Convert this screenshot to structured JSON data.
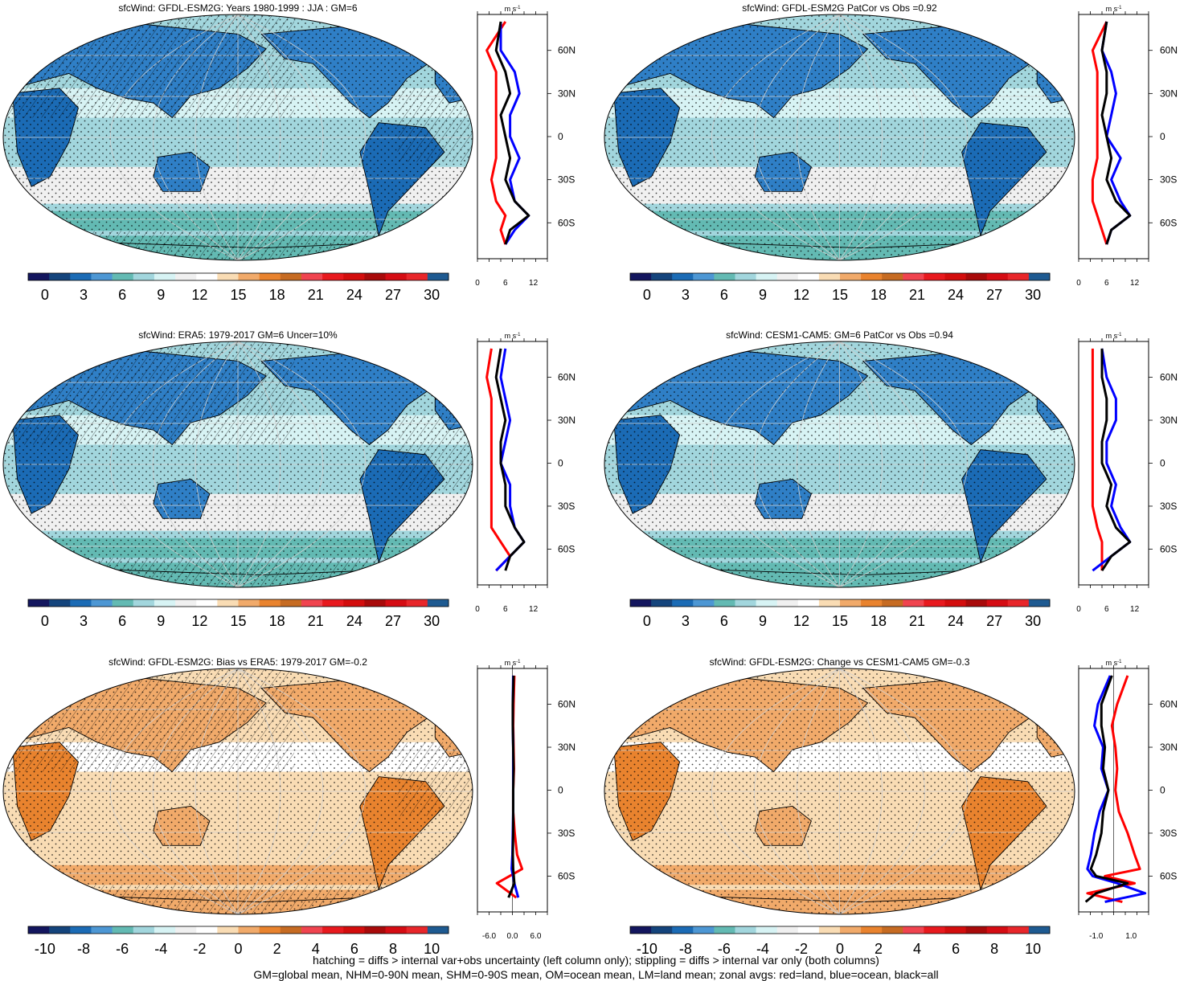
{
  "variable": "sfcWind",
  "panels": [
    {
      "id": "p1",
      "title": "sfcWind: GFDL-ESM2G: Years 1980-1999 : JJA : GM=6",
      "kind": "climatology",
      "hatching": "mixed",
      "colorbar_labels": [
        "0",
        "3",
        "6",
        "9",
        "12",
        "15",
        "18",
        "21",
        "24",
        "27",
        "30"
      ],
      "profile_ticks": [
        "0",
        "6",
        "12"
      ],
      "profile_range": [
        0,
        15
      ]
    },
    {
      "id": "p2",
      "title": "sfcWind: GFDL-ESM2G PatCor vs Obs =0.92",
      "kind": "climatology",
      "hatching": "stipple",
      "colorbar_labels": [
        "0",
        "3",
        "6",
        "9",
        "12",
        "15",
        "18",
        "21",
        "24",
        "27",
        "30"
      ],
      "profile_ticks": [
        "0",
        "6",
        "12"
      ],
      "profile_range": [
        0,
        15
      ]
    },
    {
      "id": "p3",
      "title": "sfcWind: ERA5: 1979-2017 GM=6 Uncer=10%",
      "kind": "climatology",
      "hatching": "mixed",
      "colorbar_labels": [
        "0",
        "3",
        "6",
        "9",
        "12",
        "15",
        "18",
        "21",
        "24",
        "27",
        "30"
      ],
      "profile_ticks": [
        "0",
        "6",
        "12"
      ],
      "profile_range": [
        0,
        15
      ]
    },
    {
      "id": "p4",
      "title": "sfcWind: CESM1-CAM5: GM=6 PatCor vs Obs =0.94",
      "kind": "climatology",
      "hatching": "stipple",
      "colorbar_labels": [
        "0",
        "3",
        "6",
        "9",
        "12",
        "15",
        "18",
        "21",
        "24",
        "27",
        "30"
      ],
      "profile_ticks": [
        "0",
        "6",
        "12"
      ],
      "profile_range": [
        0,
        15
      ]
    },
    {
      "id": "p5",
      "title": "sfcWind: GFDL-ESM2G: Bias vs ERA5: 1979-2017 GM=-0.2",
      "kind": "difference",
      "hatching": "mixed",
      "colorbar_labels": [
        "-10",
        "-8",
        "-6",
        "-4",
        "-2",
        "0",
        "2",
        "4",
        "6",
        "8",
        "10"
      ],
      "profile_ticks": [
        "-6.0",
        "0.0",
        "6.0"
      ],
      "profile_range": [
        -9,
        9
      ]
    },
    {
      "id": "p6",
      "title": "sfcWind: GFDL-ESM2G: Change vs CESM1-CAM5 GM=-0.3",
      "kind": "difference",
      "hatching": "stipple",
      "colorbar_labels": [
        "-10",
        "-8",
        "-6",
        "-4",
        "-2",
        "0",
        "2",
        "4",
        "6",
        "8",
        "10"
      ],
      "profile_ticks": [
        "-1.0",
        "1.0"
      ],
      "profile_range": [
        -2,
        2
      ]
    }
  ],
  "profile_unit": "m s",
  "profile_unit_sup": "-1",
  "lat_labels": [
    "60N",
    "30N",
    "0",
    "30S",
    "60S"
  ],
  "colors": {
    "cmap": [
      "#13165e",
      "#14447c",
      "#1b6bb5",
      "#4d97d4",
      "#63bab3",
      "#a2d6dd",
      "#d7f3f4",
      "#f0f0f0",
      "#ffffff",
      "#f9dcb4",
      "#f1aa6a",
      "#e9832e",
      "#c66b22",
      "#f0444f",
      "#e8191e",
      "#d30d0d",
      "#a80a0a",
      "#d50c13",
      "#e8262a",
      "#1e5a91"
    ],
    "land": "red",
    "ocean": "blue",
    "all": "black"
  },
  "chart_data": [
    {
      "type": "line",
      "title": "sfcWind: GFDL-ESM2G: Years 1980-1999 : JJA : GM=6",
      "xlabel": "m s-1",
      "x_ticks": [
        0,
        6,
        12
      ],
      "y_ticks": [
        "60N",
        "30N",
        "0",
        "30S",
        "60S"
      ],
      "lat": [
        80,
        60,
        45,
        30,
        15,
        0,
        -15,
        -30,
        -45,
        -55,
        -65,
        -75
      ],
      "series": [
        {
          "name": "red=land",
          "values": [
            6,
            2,
            4,
            4,
            4,
            4,
            4,
            3,
            4,
            6,
            5,
            6
          ]
        },
        {
          "name": "blue=ocean",
          "values": [
            5,
            5,
            8,
            9,
            7,
            7,
            9,
            7,
            8,
            11,
            8,
            6
          ]
        },
        {
          "name": "black=all",
          "values": [
            5,
            4,
            6,
            7,
            5,
            6,
            7,
            6,
            8,
            11,
            7,
            6
          ]
        }
      ]
    },
    {
      "type": "line",
      "title": "sfcWind: GFDL-ESM2G PatCor vs Obs =0.92",
      "xlabel": "m s-1",
      "x_ticks": [
        0,
        6,
        12
      ],
      "y_ticks": [
        "60N",
        "30N",
        "0",
        "30S",
        "60S"
      ],
      "lat": [
        80,
        60,
        45,
        30,
        15,
        0,
        -15,
        -30,
        -45,
        -55,
        -65,
        -75
      ],
      "series": [
        {
          "name": "red=land",
          "values": [
            6,
            3,
            4,
            4,
            4,
            4,
            4,
            3,
            3,
            4,
            5,
            6
          ]
        },
        {
          "name": "blue=ocean",
          "values": [
            6,
            5,
            7,
            8,
            7,
            6,
            9,
            7,
            9,
            11,
            7,
            6
          ]
        },
        {
          "name": "black=all",
          "values": [
            6,
            5,
            6,
            6,
            5,
            6,
            7,
            6,
            8,
            11,
            7,
            6
          ]
        }
      ]
    },
    {
      "type": "line",
      "title": "sfcWind: ERA5: 1979-2017 GM=6 Uncer=10%",
      "xlabel": "m s-1",
      "x_ticks": [
        0,
        6,
        12
      ],
      "y_ticks": [
        "60N",
        "30N",
        "0",
        "30S",
        "60S"
      ],
      "lat": [
        80,
        60,
        45,
        30,
        15,
        0,
        -15,
        -30,
        -45,
        -55,
        -65,
        -75
      ],
      "series": [
        {
          "name": "red=land",
          "values": [
            3,
            2,
            3,
            3,
            3,
            3,
            3,
            3,
            3,
            5,
            7,
            4
          ]
        },
        {
          "name": "blue=ocean",
          "values": [
            6,
            5,
            6,
            7,
            6,
            5,
            7,
            7,
            8,
            10,
            7,
            4
          ]
        },
        {
          "name": "black=all",
          "values": [
            5,
            4,
            5,
            6,
            5,
            5,
            6,
            6,
            8,
            10,
            7,
            6
          ]
        }
      ]
    },
    {
      "type": "line",
      "title": "sfcWind: CESM1-CAM5: GM=6 PatCor vs Obs =0.94",
      "xlabel": "m s-1",
      "x_ticks": [
        0,
        6,
        12
      ],
      "y_ticks": [
        "60N",
        "30N",
        "0",
        "30S",
        "60S"
      ],
      "lat": [
        80,
        60,
        45,
        30,
        15,
        0,
        -15,
        -30,
        -45,
        -55,
        -65,
        -75
      ],
      "series": [
        {
          "name": "red=land",
          "values": [
            3,
            3,
            3,
            3,
            3,
            3,
            3,
            3,
            4,
            5,
            5,
            5
          ]
        },
        {
          "name": "blue=ocean",
          "values": [
            5,
            6,
            8,
            8,
            6,
            6,
            8,
            7,
            9,
            11,
            7,
            3
          ]
        },
        {
          "name": "black=all",
          "values": [
            5,
            5,
            6,
            6,
            5,
            5,
            7,
            6,
            8,
            11,
            7,
            5
          ]
        }
      ]
    },
    {
      "type": "line",
      "title": "sfcWind: GFDL-ESM2G: Bias vs ERA5: 1979-2017 GM=-0.2",
      "xlabel": "m s-1",
      "x_ticks": [
        -6.0,
        0.0,
        6.0
      ],
      "y_ticks": [
        "60N",
        "30N",
        "0",
        "30S",
        "60S"
      ],
      "lat": [
        80,
        60,
        45,
        30,
        15,
        0,
        -15,
        -30,
        -45,
        -55,
        -65,
        -75
      ],
      "series": [
        {
          "name": "red=land",
          "values": [
            0.5,
            0.3,
            0.2,
            0.3,
            0.4,
            0.2,
            0.2,
            0.6,
            1.2,
            2.5,
            -4,
            1
          ]
        },
        {
          "name": "blue=ocean",
          "values": [
            0.2,
            0.1,
            0.1,
            0.2,
            0.2,
            0.2,
            0.2,
            0.1,
            0,
            -0.2,
            0.5,
            1.5
          ]
        },
        {
          "name": "black=all",
          "values": [
            0.3,
            0.1,
            0.1,
            0.2,
            0.3,
            0.2,
            0.2,
            0.2,
            0.1,
            0.2,
            0.5,
            -1
          ]
        }
      ]
    },
    {
      "type": "line",
      "title": "sfcWind: GFDL-ESM2G: Change vs CESM1-CAM5 GM=-0.3",
      "xlabel": "m s-1",
      "x_ticks": [
        -1.0,
        1.0
      ],
      "y_ticks": [
        "60N",
        "30N",
        "0",
        "30S",
        "60S"
      ],
      "lat": [
        80,
        60,
        45,
        30,
        15,
        0,
        -15,
        -30,
        -45,
        -55,
        -60,
        -65,
        -72,
        -78
      ],
      "series": [
        {
          "name": "red=land",
          "values": [
            0.8,
            0.2,
            -0.1,
            0.1,
            0.2,
            0.1,
            0.3,
            0.8,
            1.2,
            1.5,
            -0.5,
            1.2,
            -1.5,
            0.5
          ]
        },
        {
          "name": "blue=ocean",
          "values": [
            -0.2,
            -0.9,
            -1.1,
            -0.6,
            -0.7,
            -0.3,
            -0.8,
            -1.1,
            -1.3,
            -1.5,
            -1.2,
            0.2,
            1.8,
            -0.5
          ]
        },
        {
          "name": "black=all",
          "values": [
            -0.1,
            -0.7,
            -0.7,
            -0.5,
            -0.6,
            -0.3,
            -0.6,
            -0.7,
            -1.0,
            -1.3,
            -1.0,
            0.8,
            -1.0,
            -1.6
          ]
        }
      ]
    }
  ],
  "footer": {
    "line1": "hatching = diffs > internal var+obs uncertainty (left column only); stippling = diffs > internal var only (both columns)",
    "line2": "GM=global mean, NHM=0-90N mean, SHM=0-90S mean, OM=ocean mean, LM=land mean; zonal avgs: red=land, blue=ocean, black=all"
  }
}
